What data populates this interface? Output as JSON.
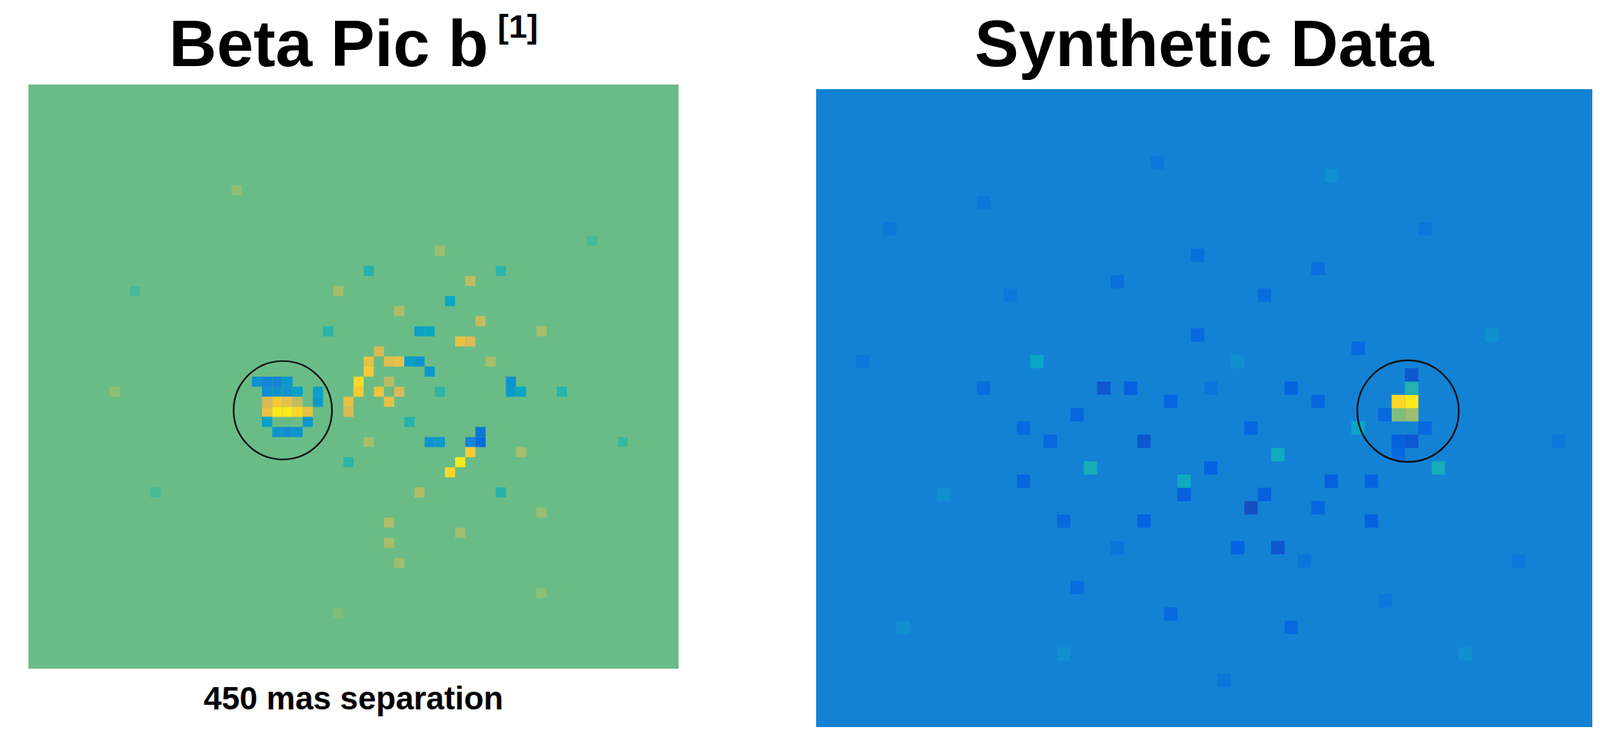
{
  "chart_data": [
    {
      "type": "heatmap",
      "title": "Beta Pic b",
      "title_reference": "[1]",
      "caption": "450 mas separation",
      "xlim": [
        0,
        64
      ],
      "ylim": [
        0,
        58
      ],
      "tick_labels": false,
      "color_range": [
        0,
        1
      ],
      "background": 0.57,
      "marker": "circle",
      "circle": [
        25.0,
        32.3
      ],
      "cells": [
        [
          22,
          29,
          0.3
        ],
        [
          23,
          29,
          0.25
        ],
        [
          24,
          29,
          0.25
        ],
        [
          25,
          29,
          0.32
        ],
        [
          23,
          30,
          0.28
        ],
        [
          24,
          30,
          0.3
        ],
        [
          25,
          30,
          0.3
        ],
        [
          26,
          30,
          0.35
        ],
        [
          28,
          30,
          0.35
        ],
        [
          28,
          31,
          0.33
        ],
        [
          23,
          31,
          0.75
        ],
        [
          24,
          31,
          0.85
        ],
        [
          25,
          31,
          0.8
        ],
        [
          26,
          31,
          0.7
        ],
        [
          23,
          32,
          0.8
        ],
        [
          24,
          32,
          0.95
        ],
        [
          25,
          32,
          0.95
        ],
        [
          26,
          32,
          0.9
        ],
        [
          27,
          32,
          0.8
        ],
        [
          23,
          33,
          0.35
        ],
        [
          27,
          33,
          0.32
        ],
        [
          24,
          34,
          0.3
        ],
        [
          25,
          34,
          0.28
        ],
        [
          26,
          34,
          0.3
        ],
        [
          31,
          31,
          0.8
        ],
        [
          32,
          30,
          0.85
        ],
        [
          32,
          29,
          0.9
        ],
        [
          33,
          28,
          0.85
        ],
        [
          33,
          27,
          0.8
        ],
        [
          34,
          26,
          0.75
        ],
        [
          35,
          27,
          0.78
        ],
        [
          36,
          27,
          0.8
        ],
        [
          35,
          29,
          0.7
        ],
        [
          31,
          32,
          0.75
        ],
        [
          34,
          30,
          0.82
        ],
        [
          35,
          31,
          0.8
        ],
        [
          36,
          30,
          0.75
        ],
        [
          37,
          27,
          0.35
        ],
        [
          38,
          27,
          0.3
        ],
        [
          39,
          28,
          0.32
        ],
        [
          42,
          25,
          0.8
        ],
        [
          43,
          25,
          0.75
        ],
        [
          38,
          24,
          0.35
        ],
        [
          39,
          24,
          0.38
        ],
        [
          39,
          35,
          0.3
        ],
        [
          40,
          35,
          0.32
        ],
        [
          43,
          35,
          0.25
        ],
        [
          44,
          34,
          0.2
        ],
        [
          41,
          21,
          0.38
        ],
        [
          44,
          35,
          0.15
        ],
        [
          42,
          37,
          0.95
        ],
        [
          41,
          38,
          0.9
        ],
        [
          43,
          36,
          0.85
        ],
        [
          47,
          29,
          0.3
        ],
        [
          47,
          30,
          0.32
        ],
        [
          48,
          30,
          0.38
        ],
        [
          43,
          19,
          0.7
        ],
        [
          44,
          23,
          0.72
        ],
        [
          35,
          43,
          0.68
        ],
        [
          35,
          45,
          0.66
        ],
        [
          36,
          47,
          0.65
        ],
        [
          30,
          20,
          0.66
        ],
        [
          33,
          18,
          0.45
        ],
        [
          36,
          22,
          0.68
        ],
        [
          40,
          30,
          0.47
        ],
        [
          45,
          27,
          0.66
        ],
        [
          46,
          40,
          0.45
        ],
        [
          50,
          24,
          0.66
        ],
        [
          38,
          40,
          0.68
        ],
        [
          31,
          37,
          0.47
        ],
        [
          48,
          36,
          0.66
        ],
        [
          52,
          30,
          0.46
        ],
        [
          40,
          16,
          0.64
        ],
        [
          46,
          18,
          0.47
        ],
        [
          33,
          35,
          0.66
        ],
        [
          37,
          33,
          0.45
        ],
        [
          50,
          42,
          0.64
        ],
        [
          29,
          24,
          0.46
        ],
        [
          42,
          44,
          0.65
        ],
        [
          10,
          20,
          0.52
        ],
        [
          12,
          40,
          0.52
        ],
        [
          55,
          15,
          0.52
        ],
        [
          58,
          35,
          0.5
        ],
        [
          50,
          50,
          0.62
        ],
        [
          20,
          10,
          0.62
        ],
        [
          8,
          30,
          0.62
        ],
        [
          30,
          52,
          0.6
        ]
      ]
    },
    {
      "type": "heatmap",
      "title": "Synthetic Data",
      "xlim": [
        0,
        58
      ],
      "ylim": [
        0,
        48
      ],
      "tick_labels": false,
      "color_range": [
        0,
        1
      ],
      "background": 0.24,
      "marker": "circle",
      "circle": [
        44.2,
        24.2
      ],
      "cells": [
        [
          43,
          23,
          0.9
        ],
        [
          44,
          23,
          0.95
        ],
        [
          43,
          24,
          0.6
        ],
        [
          44,
          24,
          0.65
        ],
        [
          44,
          22,
          0.45
        ],
        [
          44,
          21,
          0.1
        ],
        [
          43,
          26,
          0.12
        ],
        [
          44,
          26,
          0.1
        ],
        [
          43,
          27,
          0.15
        ],
        [
          42,
          24,
          0.15
        ],
        [
          45,
          25,
          0.15
        ],
        [
          21,
          22,
          0.1
        ],
        [
          23,
          22,
          0.12
        ],
        [
          19,
          24,
          0.14
        ],
        [
          24,
          26,
          0.1
        ],
        [
          32,
          31,
          0.08
        ],
        [
          33,
          30,
          0.12
        ],
        [
          29,
          28,
          0.13
        ],
        [
          38,
          29,
          0.12
        ],
        [
          34,
          34,
          0.1
        ],
        [
          37,
          31,
          0.14
        ],
        [
          41,
          32,
          0.12
        ],
        [
          41,
          29,
          0.13
        ],
        [
          37,
          23,
          0.14
        ],
        [
          40,
          19,
          0.15
        ],
        [
          35,
          22,
          0.13
        ],
        [
          28,
          18,
          0.15
        ],
        [
          26,
          23,
          0.14
        ],
        [
          15,
          25,
          0.15
        ],
        [
          15,
          29,
          0.14
        ],
        [
          18,
          32,
          0.15
        ],
        [
          24,
          32,
          0.13
        ],
        [
          27,
          30,
          0.12
        ],
        [
          31,
          34,
          0.13
        ],
        [
          35,
          40,
          0.15
        ],
        [
          26,
          39,
          0.15
        ],
        [
          19,
          37,
          0.16
        ],
        [
          12,
          22,
          0.16
        ],
        [
          28,
          12,
          0.17
        ],
        [
          33,
          15,
          0.16
        ],
        [
          37,
          13,
          0.17
        ],
        [
          22,
          14,
          0.17
        ],
        [
          32,
          25,
          0.14
        ],
        [
          17,
          26,
          0.15
        ],
        [
          20,
          28,
          0.42
        ],
        [
          34,
          27,
          0.4
        ],
        [
          46,
          28,
          0.42
        ],
        [
          16,
          20,
          0.38
        ],
        [
          27,
          29,
          0.4
        ],
        [
          40,
          25,
          0.38
        ],
        [
          5,
          10,
          0.2
        ],
        [
          9,
          30,
          0.29
        ],
        [
          12,
          8,
          0.2
        ],
        [
          18,
          42,
          0.29
        ],
        [
          25,
          5,
          0.2
        ],
        [
          30,
          44,
          0.2
        ],
        [
          38,
          6,
          0.29
        ],
        [
          45,
          10,
          0.2
        ],
        [
          50,
          18,
          0.29
        ],
        [
          52,
          35,
          0.2
        ],
        [
          48,
          42,
          0.29
        ],
        [
          55,
          26,
          0.2
        ],
        [
          6,
          40,
          0.29
        ],
        [
          3,
          20,
          0.2
        ],
        [
          14,
          15,
          0.2
        ],
        [
          42,
          38,
          0.2
        ],
        [
          29,
          22,
          0.19
        ],
        [
          36,
          35,
          0.19
        ],
        [
          22,
          34,
          0.19
        ],
        [
          31,
          20,
          0.29
        ]
      ]
    }
  ]
}
